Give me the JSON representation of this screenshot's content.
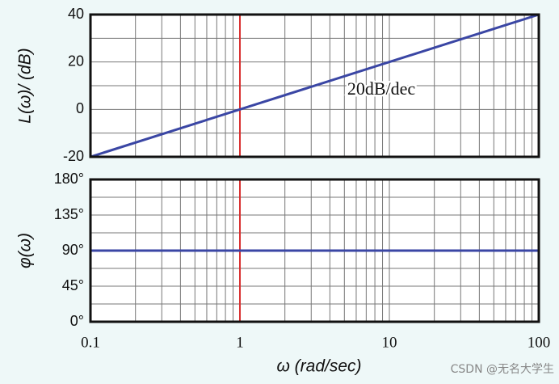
{
  "chart_data": [
    {
      "type": "line",
      "xscale": "log",
      "xlim": [
        0.1,
        100
      ],
      "ylim": [
        -20,
        40
      ],
      "yticks": [
        -20,
        0,
        20,
        40
      ],
      "ygrid": [
        -10,
        10,
        30
      ],
      "xgrid": [
        0.1,
        0.2,
        0.3,
        0.4,
        0.5,
        0.6,
        0.7,
        0.8,
        0.9,
        1,
        2,
        3,
        4,
        5,
        6,
        7,
        8,
        9,
        10,
        20,
        30,
        40,
        50,
        60,
        70,
        80,
        90,
        100
      ],
      "ylabel": "L(ω)/ (dB)",
      "annotation": "20dB/dec",
      "vline": {
        "x": 1,
        "color": "#d93030"
      },
      "series": [
        {
          "x": [
            0.1,
            100
          ],
          "values": [
            -20,
            40
          ],
          "color": "#3a46a4"
        }
      ]
    },
    {
      "type": "line",
      "xscale": "log",
      "xlim": [
        0.1,
        100
      ],
      "ylim": [
        0,
        180
      ],
      "yticks": [
        {
          "value": 0,
          "label": "0°"
        },
        {
          "value": 45,
          "label": "45°"
        },
        {
          "value": 90,
          "label": "90°"
        },
        {
          "value": 135,
          "label": "135°"
        },
        {
          "value": 180,
          "label": "180°"
        }
      ],
      "ygrid": [
        22.5,
        67.5,
        112.5,
        157.5
      ],
      "xgrid": [
        0.1,
        0.2,
        0.3,
        0.4,
        0.5,
        0.6,
        0.7,
        0.8,
        0.9,
        1,
        2,
        3,
        4,
        5,
        6,
        7,
        8,
        9,
        10,
        20,
        30,
        40,
        50,
        60,
        70,
        80,
        90,
        100
      ],
      "xticks": [
        0.1,
        1,
        10,
        100
      ],
      "ylabel": "φ(ω)",
      "xlabel": "ω  (rad/sec)",
      "vline": {
        "x": 1,
        "color": "#d93030"
      },
      "series": [
        {
          "x": [
            0.1,
            100
          ],
          "values": [
            90,
            90
          ],
          "color": "#3a46a4"
        }
      ]
    }
  ],
  "watermark": "CSDN @无名大学生"
}
